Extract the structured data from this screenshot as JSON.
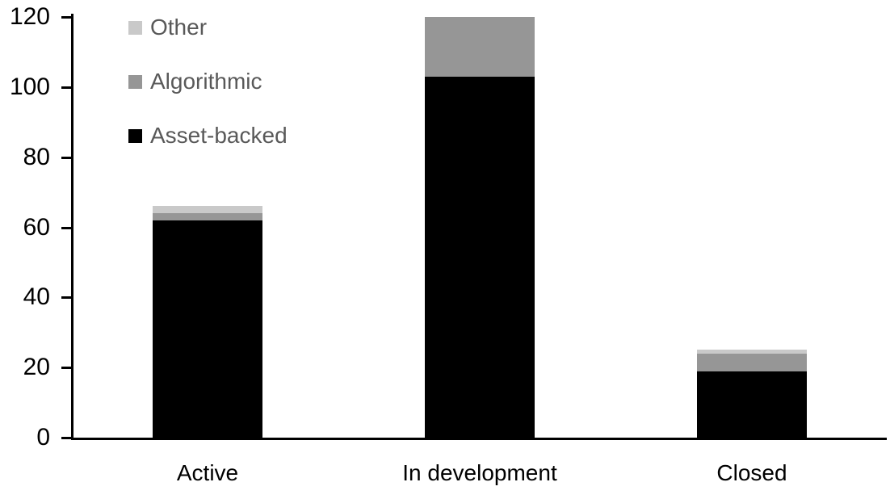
{
  "chart_data": {
    "type": "bar",
    "stacked": true,
    "title": "",
    "xlabel": "",
    "ylabel": "",
    "categories": [
      "Active",
      "In development",
      "Closed"
    ],
    "series": [
      {
        "name": "Asset-backed",
        "color": "#000000",
        "values": [
          62,
          103,
          19
        ]
      },
      {
        "name": "Algorithmic",
        "color": "#969696",
        "values": [
          2,
          17,
          5
        ]
      },
      {
        "name": "Other",
        "color": "#c9c9c9",
        "values": [
          2,
          0,
          1
        ]
      }
    ],
    "totals": [
      66,
      120,
      25
    ],
    "ylim": [
      0,
      120
    ],
    "yticks": [
      0,
      20,
      40,
      60,
      80,
      100,
      120
    ],
    "grid": false,
    "legend_position": "top-left",
    "legend_order_top_to_bottom": [
      "Other",
      "Algorithmic",
      "Asset-backed"
    ],
    "legend_text_color": "#595959",
    "axis_color": "#000000",
    "background_color": "#ffffff"
  }
}
